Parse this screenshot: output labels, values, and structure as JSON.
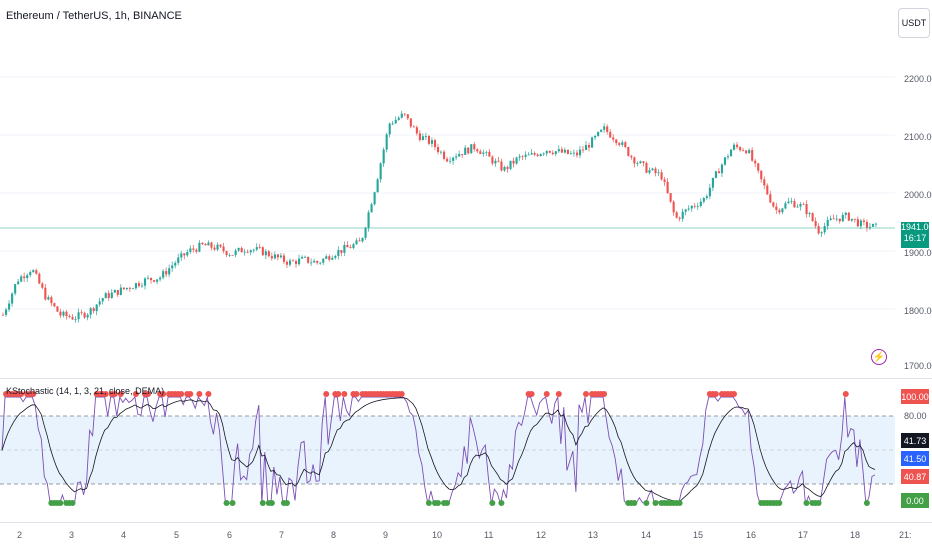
{
  "header": {
    "title": "Ethereum / TetherUS, 1h, BINANCE",
    "currency": "USDT"
  },
  "price_axis": [
    "2200.00",
    "2100.00",
    "2000.00",
    "1900.00",
    "1800.00",
    "1700.00"
  ],
  "current_price": {
    "price": "1941.00",
    "countdown": "16:17"
  },
  "indicator": {
    "title": "KStochastic (14, 1, 3, 21, close, DEMA)",
    "levels": [
      "80.00"
    ],
    "badges": {
      "top": "100.00",
      "k": "41.73",
      "d": "41.50",
      "other": "40.87",
      "bottom": "0.00"
    }
  },
  "x_axis": [
    "2",
    "3",
    "4",
    "5",
    "6",
    "7",
    "8",
    "9",
    "10",
    "11",
    "12",
    "13",
    "14",
    "15",
    "16",
    "17",
    "18",
    "21:"
  ],
  "colors": {
    "up": "#26a69a",
    "down": "#ef5350",
    "current": "#089981",
    "stoch_k": "#7b4fb5",
    "stoch_d": "#131722",
    "ob": "#ef5350",
    "os": "#43a047",
    "band": "#e3f0fd"
  },
  "chart_data": {
    "type": "candlestick",
    "interval": "1h",
    "symbol": "ETHUSDT",
    "close_path": [
      1790,
      1850,
      1870,
      1820,
      1790,
      1785,
      1795,
      1820,
      1830,
      1840,
      1850,
      1855,
      1880,
      1900,
      1910,
      1905,
      1895,
      1905,
      1900,
      1890,
      1880,
      1885,
      1880,
      1895,
      1905,
      1915,
      2010,
      2120,
      2135,
      2100,
      2085,
      2060,
      2070,
      2080,
      2060,
      2040,
      2060,
      2065,
      2075,
      2070,
      2065,
      2085,
      2110,
      2090,
      2060,
      2040,
      2030,
      1955,
      1975,
      1990,
      2040,
      2080,
      2075,
      2020,
      1970,
      1985,
      1975,
      1935,
      1955,
      1960,
      1945,
      1941
    ],
    "ylim": [
      1700,
      2200
    ],
    "indicator": {
      "name": "KStochastic",
      "ylim": [
        0,
        100
      ],
      "last": {
        "k": 41.73,
        "d": 41.5
      }
    }
  }
}
